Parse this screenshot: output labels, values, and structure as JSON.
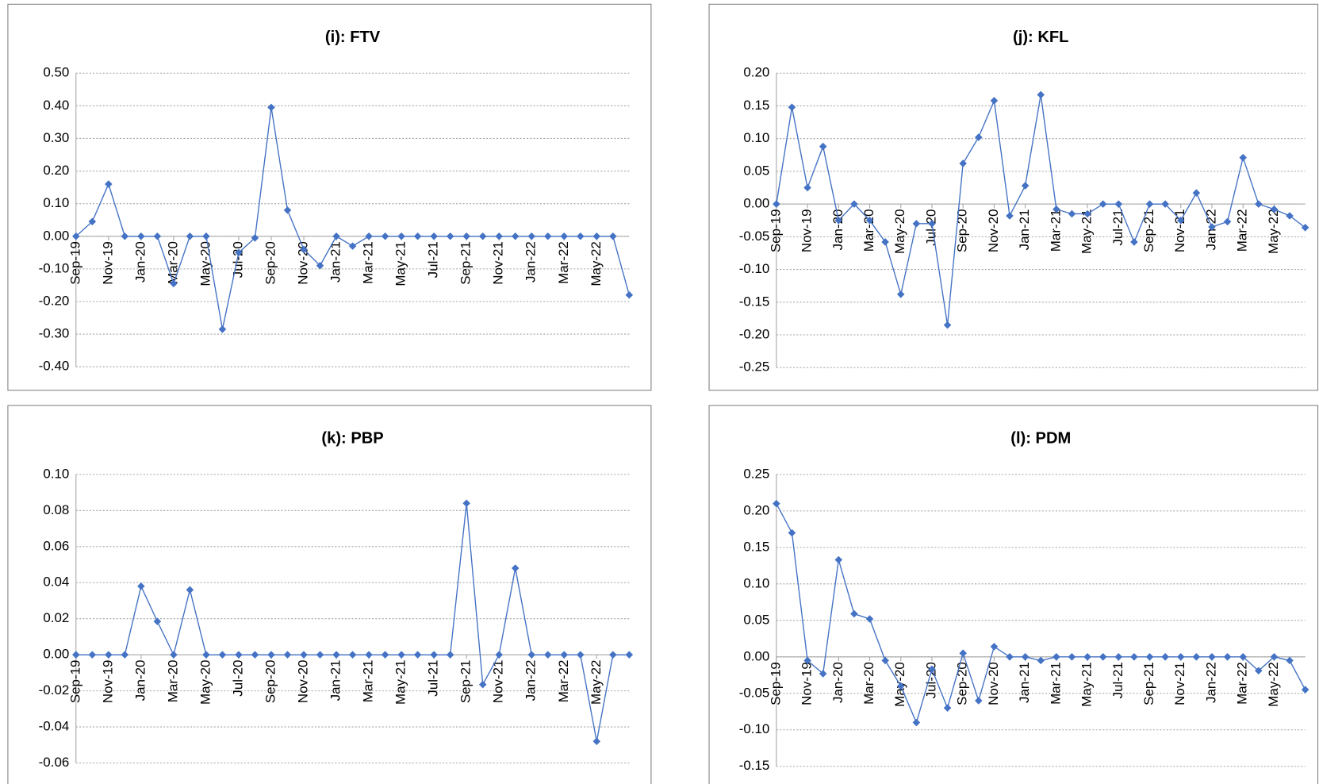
{
  "chart_data": [
    {
      "type": "line",
      "title": "(i): FTV",
      "categories": [
        "Sep-19",
        null,
        "Nov-19",
        null,
        "Jan-20",
        null,
        "Mar-20",
        null,
        "May-20",
        null,
        "Jul-20",
        null,
        "Sep-20",
        null,
        "Nov-20",
        null,
        "Jan-21",
        null,
        "Mar-21",
        null,
        "May-21",
        null,
        "Jul-21",
        null,
        "Sep-21",
        null,
        "Nov-21",
        null,
        "Jan-22",
        null,
        "Mar-22",
        null,
        "May-22",
        null,
        null
      ],
      "values": [
        0,
        0.045,
        0.16,
        0,
        0,
        0,
        -0.145,
        0,
        0,
        -0.285,
        -0.05,
        -0.005,
        0.395,
        0.08,
        -0.04,
        -0.09,
        0,
        -0.03,
        0,
        0,
        0,
        0,
        0,
        0,
        0,
        0,
        0,
        0,
        0,
        0,
        0,
        0,
        0,
        0,
        -0.18
      ],
      "color": "#4472c4",
      "ylim": [
        -0.4,
        0.5
      ],
      "yticks": [
        {
          "value": 0.5,
          "label": "0.50"
        },
        {
          "value": 0.4,
          "label": "0.40"
        },
        {
          "value": 0.3,
          "label": "0.30"
        },
        {
          "value": 0.2,
          "label": "0.20"
        },
        {
          "value": 0.1,
          "label": "0.10"
        },
        {
          "value": 0,
          "label": "0.00"
        },
        {
          "value": -0.1,
          "label": "-0.10"
        },
        {
          "value": -0.2,
          "label": "-0.20"
        },
        {
          "value": -0.3,
          "label": "-0.30"
        },
        {
          "value": -0.4,
          "label": "-0.40"
        }
      ],
      "grid": true
    },
    {
      "type": "line",
      "title": "(j): KFL",
      "categories": [
        "Sep-19",
        null,
        "Nov-19",
        null,
        "Jan-20",
        null,
        "Mar-20",
        null,
        "May-20",
        null,
        "Jul-20",
        null,
        "Sep-20",
        null,
        "Nov-20",
        null,
        "Jan-21",
        null,
        "Mar-21",
        null,
        "May-21",
        null,
        "Jul-21",
        null,
        "Sep-21",
        null,
        "Nov-21",
        null,
        "Jan-22",
        null,
        "Mar-22",
        null,
        "May-22",
        null,
        null
      ],
      "values": [
        0,
        0.148,
        0.025,
        0.088,
        -0.025,
        0,
        -0.025,
        -0.058,
        -0.138,
        -0.03,
        -0.03,
        -0.185,
        0.062,
        0.102,
        0.158,
        -0.018,
        0.028,
        0.167,
        -0.008,
        -0.015,
        -0.015,
        0,
        0,
        -0.058,
        0,
        0,
        -0.025,
        0.017,
        -0.035,
        -0.027,
        0.071,
        0,
        -0.008,
        -0.018,
        -0.036
      ],
      "color": "#4472c4",
      "ylim": [
        -0.25,
        0.2
      ],
      "yticks": [
        {
          "value": 0.2,
          "label": "0.20"
        },
        {
          "value": 0.15,
          "label": "0.15"
        },
        {
          "value": 0.1,
          "label": "0.10"
        },
        {
          "value": 0.05,
          "label": "0.05"
        },
        {
          "value": 0,
          "label": "0.00"
        },
        {
          "value": -0.05,
          "label": "-0.05"
        },
        {
          "value": -0.1,
          "label": "-0.10"
        },
        {
          "value": -0.15,
          "label": "-0.15"
        },
        {
          "value": -0.2,
          "label": "-0.20"
        },
        {
          "value": -0.25,
          "label": "-0.25"
        }
      ],
      "grid": true
    },
    {
      "type": "line",
      "title": "(k): PBP",
      "categories": [
        "Sep-19",
        null,
        "Nov-19",
        null,
        "Jan-20",
        null,
        "Mar-20",
        null,
        "May-20",
        null,
        "Jul-20",
        null,
        "Sep-20",
        null,
        "Nov-20",
        null,
        "Jan-21",
        null,
        "Mar-21",
        null,
        "May-21",
        null,
        "Jul-21",
        null,
        "Sep-21",
        null,
        "Nov-21",
        null,
        "Jan-22",
        null,
        "Mar-22",
        null,
        "May-22",
        null,
        null
      ],
      "values": [
        0,
        0,
        0,
        0,
        0.038,
        0.0185,
        0,
        0.036,
        0,
        0,
        0,
        0,
        0,
        0,
        0,
        0,
        0,
        0,
        0,
        0,
        0,
        0,
        0,
        0,
        0.084,
        -0.0165,
        0,
        0.048,
        0,
        0,
        0,
        0,
        -0.048,
        0,
        0
      ],
      "color": "#4472c4",
      "ylim": [
        -0.06,
        0.1
      ],
      "yticks": [
        {
          "value": 0.1,
          "label": "0.10"
        },
        {
          "value": 0.08,
          "label": "0.08"
        },
        {
          "value": 0.06,
          "label": "0.06"
        },
        {
          "value": 0.04,
          "label": "0.04"
        },
        {
          "value": 0.02,
          "label": "0.02"
        },
        {
          "value": 0,
          "label": "0.00"
        },
        {
          "value": -0.02,
          "label": "-0.02"
        },
        {
          "value": -0.04,
          "label": "-0.04"
        },
        {
          "value": -0.06,
          "label": "-0.06"
        }
      ],
      "grid": true
    },
    {
      "type": "line",
      "title": "(l): PDM",
      "categories": [
        "Sep-19",
        null,
        "Nov-19",
        null,
        "Jan-20",
        null,
        "Mar-20",
        null,
        "May-20",
        null,
        "Jul-20",
        null,
        "Sep-20",
        null,
        "Nov-20",
        null,
        "Jan-21",
        null,
        "Mar-21",
        null,
        "May-21",
        null,
        "Jul-21",
        null,
        "Sep-21",
        null,
        "Nov-21",
        null,
        "Jan-22",
        null,
        "Mar-22",
        null,
        "May-22",
        null,
        null
      ],
      "values": [
        0.21,
        0.17,
        -0.005,
        -0.023,
        0.133,
        0.059,
        0.052,
        -0.005,
        -0.04,
        -0.09,
        -0.017,
        -0.07,
        0.005,
        -0.06,
        0.014,
        0,
        0,
        -0.005,
        0,
        0,
        0,
        0,
        0,
        0,
        0,
        0,
        0,
        0,
        0,
        0,
        0,
        -0.019,
        0,
        -0.005,
        -0.045
      ],
      "color": "#4472c4",
      "ylim": [
        -0.15,
        0.25
      ],
      "yticks": [
        {
          "value": 0.25,
          "label": "0.25"
        },
        {
          "value": 0.2,
          "label": "0.20"
        },
        {
          "value": 0.15,
          "label": "0.15"
        },
        {
          "value": 0.1,
          "label": "0.10"
        },
        {
          "value": 0.05,
          "label": "0.05"
        },
        {
          "value": 0,
          "label": "0.00"
        },
        {
          "value": -0.05,
          "label": "-0.05"
        },
        {
          "value": -0.1,
          "label": "-0.10"
        },
        {
          "value": -0.15,
          "label": "-0.15"
        }
      ],
      "grid": true
    }
  ]
}
